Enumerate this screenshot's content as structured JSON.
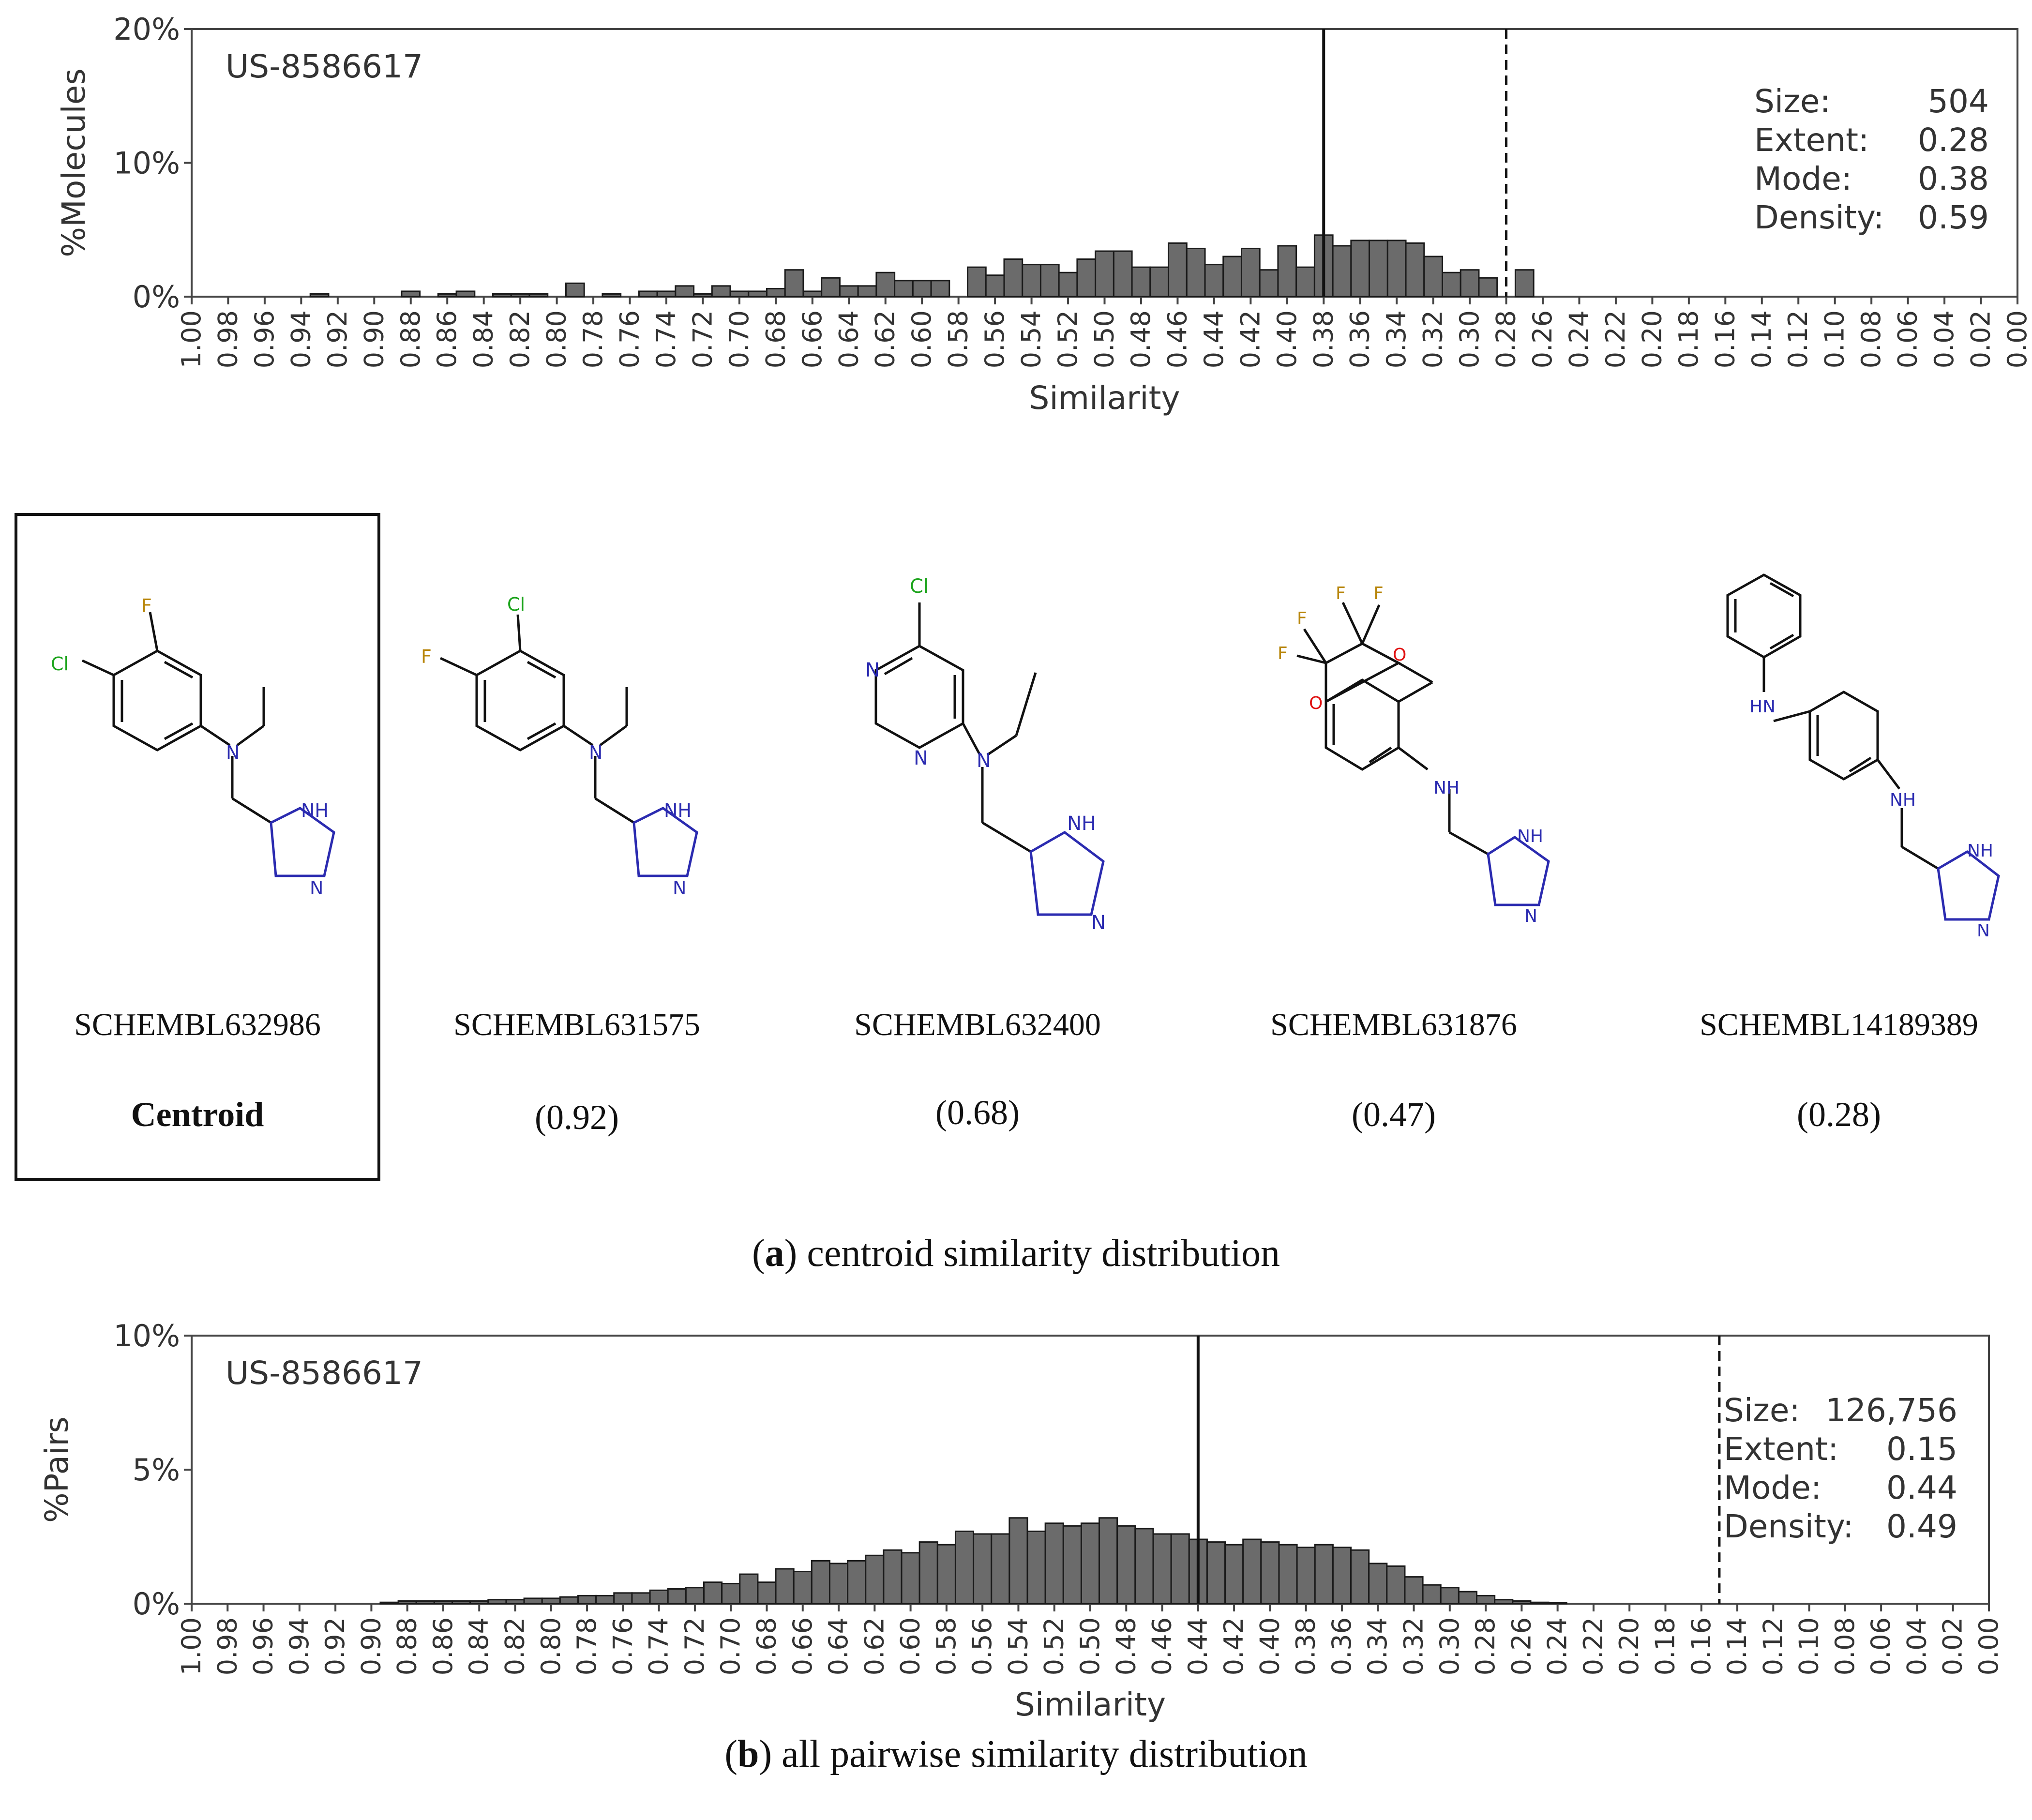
{
  "chart_data": [
    {
      "type": "bar",
      "id": "centroid-hist",
      "annotation": "US-8586617",
      "ylabel": "%Molecules",
      "xlabel": "Similarity",
      "yticks": [
        "0%",
        "10%",
        "20%"
      ],
      "ylim": [
        0,
        20
      ],
      "xlim": [
        1.0,
        0.0
      ],
      "xticks": [
        "1.00",
        "0.98",
        "0.96",
        "0.94",
        "0.92",
        "0.90",
        "0.88",
        "0.86",
        "0.84",
        "0.82",
        "0.80",
        "0.78",
        "0.76",
        "0.74",
        "0.72",
        "0.70",
        "0.68",
        "0.66",
        "0.64",
        "0.62",
        "0.60",
        "0.58",
        "0.56",
        "0.54",
        "0.52",
        "0.50",
        "0.48",
        "0.46",
        "0.44",
        "0.42",
        "0.40",
        "0.38",
        "0.36",
        "0.34",
        "0.32",
        "0.30",
        "0.28",
        "0.26",
        "0.24",
        "0.22",
        "0.20",
        "0.18",
        "0.16",
        "0.14",
        "0.12",
        "0.10",
        "0.08",
        "0.06",
        "0.04",
        "0.02",
        "0.00"
      ],
      "bins": {
        "start": 0.93,
        "width": 0.01
      },
      "values": [
        0.2,
        0.0,
        0.0,
        0.0,
        0.0,
        0.4,
        0.0,
        0.2,
        0.4,
        0.0,
        0.2,
        0.2,
        0.2,
        0.0,
        1.0,
        0.0,
        0.2,
        0.0,
        0.4,
        0.4,
        0.8,
        0.2,
        0.8,
        0.4,
        0.4,
        0.6,
        2.0,
        0.4,
        1.4,
        0.8,
        0.8,
        1.8,
        1.2,
        1.2,
        1.2,
        0.0,
        2.2,
        1.6,
        2.8,
        2.4,
        2.4,
        1.8,
        2.8,
        3.4,
        3.4,
        2.2,
        2.2,
        4.0,
        3.6,
        2.4,
        3.0,
        3.6,
        2.0,
        3.8,
        2.2,
        4.6,
        3.8,
        4.2,
        4.2,
        4.2,
        4.0,
        3.0,
        1.8,
        2.0,
        1.4,
        0.0,
        2.0
      ],
      "solid_line": 0.38,
      "dashed_line": 0.28,
      "stats": [
        {
          "label": "Size:",
          "value": "504"
        },
        {
          "label": "Extent:",
          "value": "0.28"
        },
        {
          "label": "Mode:",
          "value": "0.38"
        },
        {
          "label": "Density:",
          "value": "0.59"
        }
      ]
    },
    {
      "type": "bar",
      "id": "pairwise-hist",
      "annotation": "US-8586617",
      "ylabel": "%Pairs",
      "xlabel": "Similarity",
      "yticks": [
        "0%",
        "5%",
        "10%"
      ],
      "ylim": [
        0,
        10
      ],
      "xlim": [
        1.0,
        0.0
      ],
      "xticks": [
        "1.00",
        "0.98",
        "0.96",
        "0.94",
        "0.92",
        "0.90",
        "0.88",
        "0.86",
        "0.84",
        "0.82",
        "0.80",
        "0.78",
        "0.76",
        "0.74",
        "0.72",
        "0.70",
        "0.68",
        "0.66",
        "0.64",
        "0.62",
        "0.60",
        "0.58",
        "0.56",
        "0.54",
        "0.52",
        "0.50",
        "0.48",
        "0.46",
        "0.44",
        "0.42",
        "0.40",
        "0.38",
        "0.36",
        "0.34",
        "0.32",
        "0.30",
        "0.28",
        "0.26",
        "0.24",
        "0.22",
        "0.20",
        "0.18",
        "0.16",
        "0.14",
        "0.12",
        "0.10",
        "0.08",
        "0.06",
        "0.04",
        "0.02",
        "0.00"
      ],
      "bins": {
        "start": 0.89,
        "width": 0.01
      },
      "values": [
        0.05,
        0.1,
        0.1,
        0.1,
        0.1,
        0.1,
        0.15,
        0.15,
        0.2,
        0.2,
        0.25,
        0.3,
        0.3,
        0.4,
        0.4,
        0.5,
        0.55,
        0.6,
        0.8,
        0.75,
        1.1,
        0.8,
        1.3,
        1.2,
        1.6,
        1.5,
        1.6,
        1.8,
        2.0,
        1.9,
        2.3,
        2.2,
        2.7,
        2.6,
        2.6,
        3.2,
        2.7,
        3.0,
        2.9,
        3.0,
        3.2,
        2.9,
        2.8,
        2.6,
        2.6,
        2.4,
        2.3,
        2.2,
        2.4,
        2.3,
        2.2,
        2.1,
        2.2,
        2.1,
        2.0,
        1.5,
        1.4,
        1.0,
        0.7,
        0.6,
        0.45,
        0.3,
        0.15,
        0.1,
        0.05,
        0.03,
        0.0
      ],
      "solid_line": 0.44,
      "dashed_line": 0.15,
      "stats": [
        {
          "label": "Size:",
          "value": "126,756"
        },
        {
          "label": "Extent:",
          "value": "0.15"
        },
        {
          "label": "Mode:",
          "value": "0.44"
        },
        {
          "label": "Density:",
          "value": "0.49"
        }
      ]
    }
  ],
  "molecules": [
    {
      "name": "SCHEMBL632986",
      "score": "Centroid",
      "atoms": [
        "F",
        "Cl",
        "N",
        "NH",
        "N"
      ]
    },
    {
      "name": "SCHEMBL631575",
      "score": "(0.92)",
      "atoms": [
        "Cl",
        "F",
        "N",
        "NH",
        "N"
      ]
    },
    {
      "name": "SCHEMBL632400",
      "score": "(0.68)",
      "atoms": [
        "Cl",
        "N",
        "N",
        "N",
        "NH",
        "N"
      ]
    },
    {
      "name": "SCHEMBL631876",
      "score": "(0.47)",
      "atoms": [
        "F",
        "F",
        "F",
        "F",
        "O",
        "O",
        "NH",
        "NH",
        "N"
      ]
    },
    {
      "name": "SCHEMBL14189389",
      "score": "(0.28)",
      "atoms": [
        "HN",
        "NH",
        "NH",
        "N"
      ]
    }
  ],
  "captions": {
    "a_letter": "a",
    "a_text": " centroid similarity distribution",
    "b_letter": "b",
    "b_text": " all pairwise similarity distribution"
  },
  "colors": {
    "bar_fill": "#6b6b6b",
    "bar_edge": "#1a1a1a",
    "nitrogen": "#2b2bb0",
    "chlorine": "#1aa31a",
    "fluorine": "#b8860b",
    "oxygen": "#e01010"
  }
}
